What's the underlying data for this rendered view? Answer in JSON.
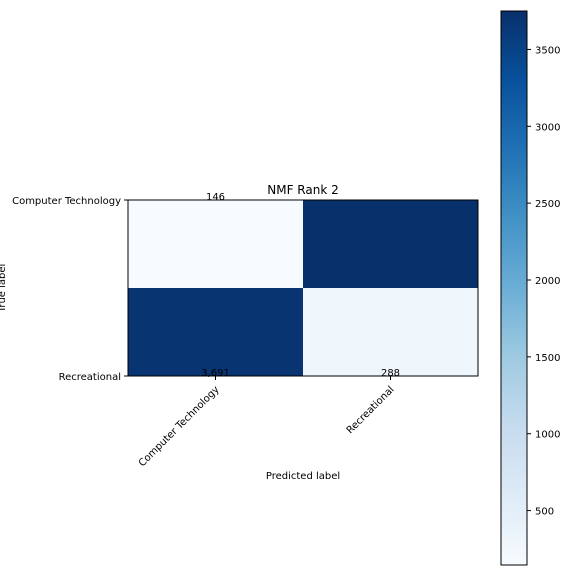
{
  "chart_data": {
    "type": "heatmap",
    "title": "NMF Rank 2",
    "xlabel": "Predicted label",
    "ylabel": "True label",
    "x_categories": [
      "Computer Technology",
      "Recreational"
    ],
    "y_categories": [
      "Computer Technology",
      "Recreational"
    ],
    "matrix": [
      [
        146,
        3750
      ],
      [
        3691,
        288
      ]
    ],
    "cell_labels": [
      [
        "146",
        ""
      ],
      [
        "3,691",
        "288"
      ]
    ],
    "colormap": "Blues",
    "colorbar": {
      "range": [
        146,
        3750
      ],
      "ticks": [
        500,
        1000,
        1500,
        2000,
        2500,
        3000,
        3500
      ],
      "tick_labels": [
        "500",
        "1000",
        "1500",
        "2000",
        "2500",
        "3000",
        "3500"
      ]
    },
    "grid": false
  }
}
